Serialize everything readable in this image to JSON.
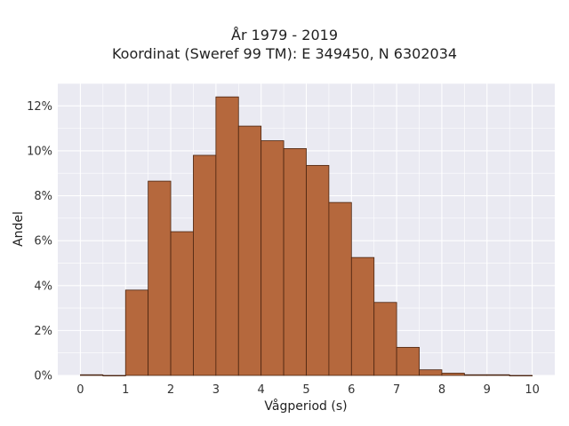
{
  "chart_data": {
    "type": "bar",
    "title_lines": [
      "År 1979 - 2019",
      "Koordinat (Sweref 99 TM): E 349450, N 6302034"
    ],
    "xlabel": "Vågperiod (s)",
    "ylabel": "Andel",
    "bin_width": 0.5,
    "bins": [
      {
        "start": 0.0,
        "value": 0.03
      },
      {
        "start": 0.5,
        "value": 0.0
      },
      {
        "start": 1.0,
        "value": 3.8
      },
      {
        "start": 1.5,
        "value": 8.65
      },
      {
        "start": 2.0,
        "value": 6.4
      },
      {
        "start": 2.5,
        "value": 9.8
      },
      {
        "start": 3.0,
        "value": 12.4
      },
      {
        "start": 3.5,
        "value": 11.1
      },
      {
        "start": 4.0,
        "value": 10.45
      },
      {
        "start": 4.5,
        "value": 10.1
      },
      {
        "start": 5.0,
        "value": 9.35
      },
      {
        "start": 5.5,
        "value": 7.7
      },
      {
        "start": 6.0,
        "value": 5.25
      },
      {
        "start": 6.5,
        "value": 3.25
      },
      {
        "start": 7.0,
        "value": 1.25
      },
      {
        "start": 7.5,
        "value": 0.25
      },
      {
        "start": 8.0,
        "value": 0.1
      },
      {
        "start": 8.5,
        "value": 0.03
      },
      {
        "start": 9.0,
        "value": 0.03
      },
      {
        "start": 9.5,
        "value": 0.0
      }
    ],
    "x_ticks": [
      "0",
      "1",
      "2",
      "3",
      "4",
      "5",
      "6",
      "7",
      "8",
      "9",
      "10"
    ],
    "y_ticks": [
      "0%",
      "2%",
      "4%",
      "6%",
      "8%",
      "10%",
      "12%"
    ],
    "xlim": [
      -0.5,
      10.5
    ],
    "ylim": [
      0,
      13
    ],
    "grid": true,
    "colors": {
      "bar_fill": "#b5683d",
      "bar_edge": "#4a2410",
      "plot_bg": "#eaeaf2",
      "grid": "#ffffff"
    }
  }
}
